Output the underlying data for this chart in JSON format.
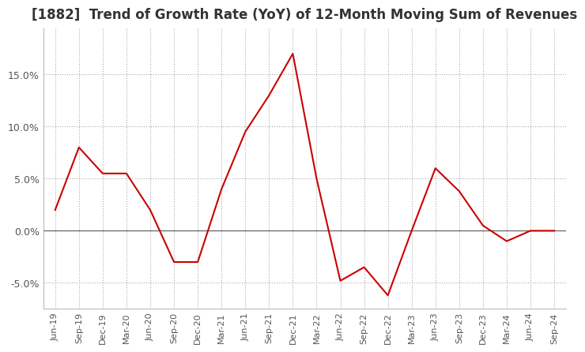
{
  "title": "[1882]  Trend of Growth Rate (YoY) of 12-Month Moving Sum of Revenues",
  "title_fontsize": 12,
  "line_color": "#cc0000",
  "background_color": "#ffffff",
  "grid_color": "#aaaaaa",
  "tick_label_color": "#555555",
  "ylim": [
    -0.075,
    0.195
  ],
  "yticks": [
    -0.05,
    0.0,
    0.05,
    0.1,
    0.15
  ],
  "ytick_labels": [
    "-5.0%",
    "0.0%",
    "5.0%",
    "10.0%",
    "15.0%"
  ],
  "dates": [
    "Jun-19",
    "Sep-19",
    "Dec-19",
    "Mar-20",
    "Jun-20",
    "Sep-20",
    "Dec-20",
    "Mar-21",
    "Jun-21",
    "Sep-21",
    "Dec-21",
    "Mar-22",
    "Jun-22",
    "Sep-22",
    "Dec-22",
    "Mar-23",
    "Jun-23",
    "Sep-23",
    "Dec-23",
    "Mar-24",
    "Jun-24",
    "Sep-24"
  ],
  "values": [
    0.02,
    0.08,
    0.055,
    0.055,
    0.02,
    -0.03,
    -0.03,
    0.04,
    0.095,
    0.13,
    0.17,
    0.05,
    -0.048,
    -0.035,
    -0.062,
    0.0,
    0.06,
    0.038,
    0.005,
    -0.01,
    0.0,
    0.0
  ]
}
